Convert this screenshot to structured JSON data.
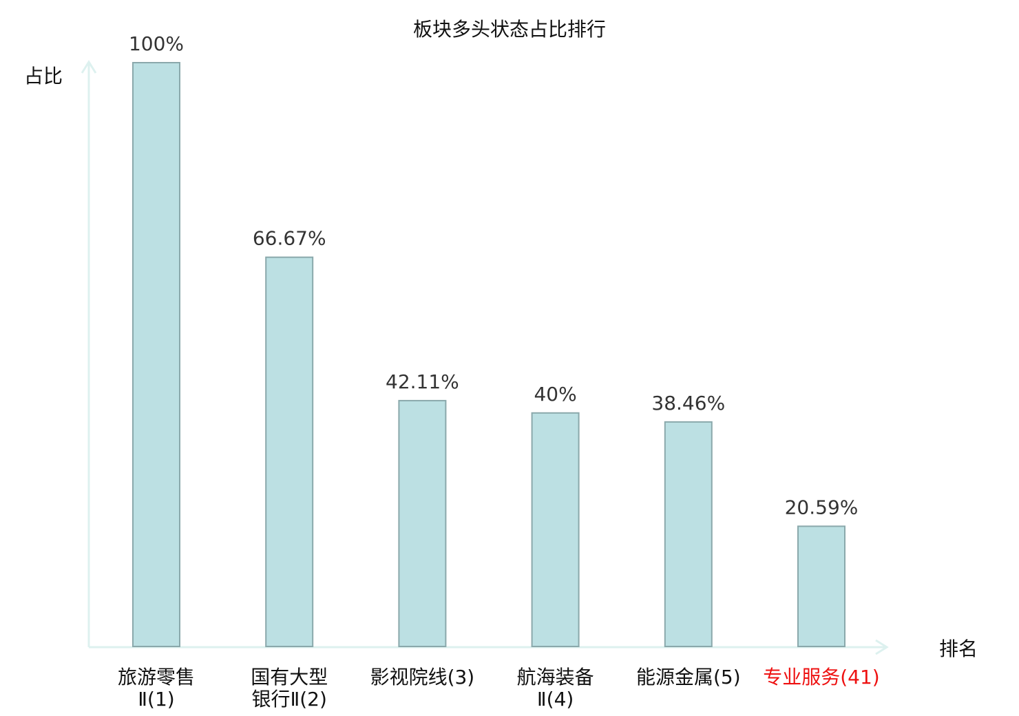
{
  "chart_data": {
    "type": "bar",
    "title": "板块多头状态占比排行",
    "xlabel": "排名",
    "ylabel": "占比",
    "ylim": [
      0,
      100
    ],
    "grid": false,
    "categories": [
      [
        "旅游零售",
        "Ⅱ(1)"
      ],
      [
        "国有大型",
        "银行Ⅱ(2)"
      ],
      [
        "影视院线(3)"
      ],
      [
        "航海装备",
        "Ⅱ(4)"
      ],
      [
        "能源金属(5)"
      ],
      [
        "专业服务(41)"
      ]
    ],
    "values": [
      100,
      66.67,
      42.11,
      40,
      38.46,
      20.59
    ],
    "value_labels": [
      "100%",
      "66.67%",
      "42.11%",
      "40%",
      "38.46%",
      "20.59%"
    ],
    "highlight_index": 5,
    "colors": {
      "bar_fill": "#bce0e3",
      "bar_stroke": "#8aa8ab",
      "axis": "#ddf1ef",
      "text": "#333333",
      "highlight": "#ee1111"
    }
  }
}
